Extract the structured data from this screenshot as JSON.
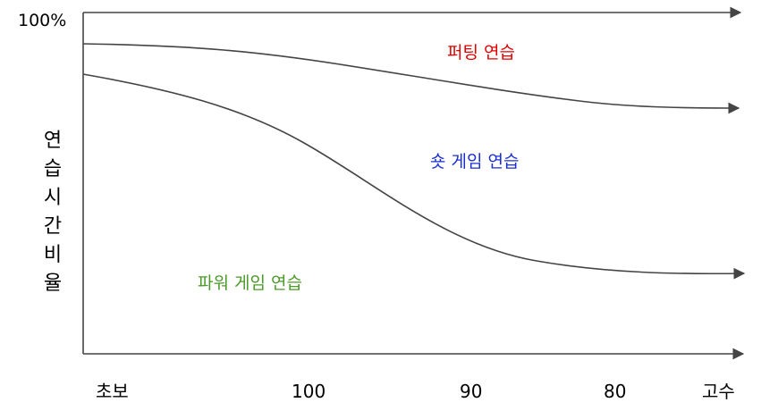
{
  "y_axis": {
    "top_label": "100%",
    "label": "연습시간비율"
  },
  "x_axis": {
    "ticks": [
      "초보",
      "100",
      "90",
      "80",
      "고수"
    ]
  },
  "regions": [
    {
      "label": "퍼팅 연습",
      "color": "#e00000"
    },
    {
      "label": "숏 게임 연습",
      "color": "#1a2fd0"
    },
    {
      "label": "파워 게임 연습",
      "color": "#4b9a2a"
    }
  ],
  "colors": {
    "axis": "#444444",
    "curve": "#444444"
  }
}
